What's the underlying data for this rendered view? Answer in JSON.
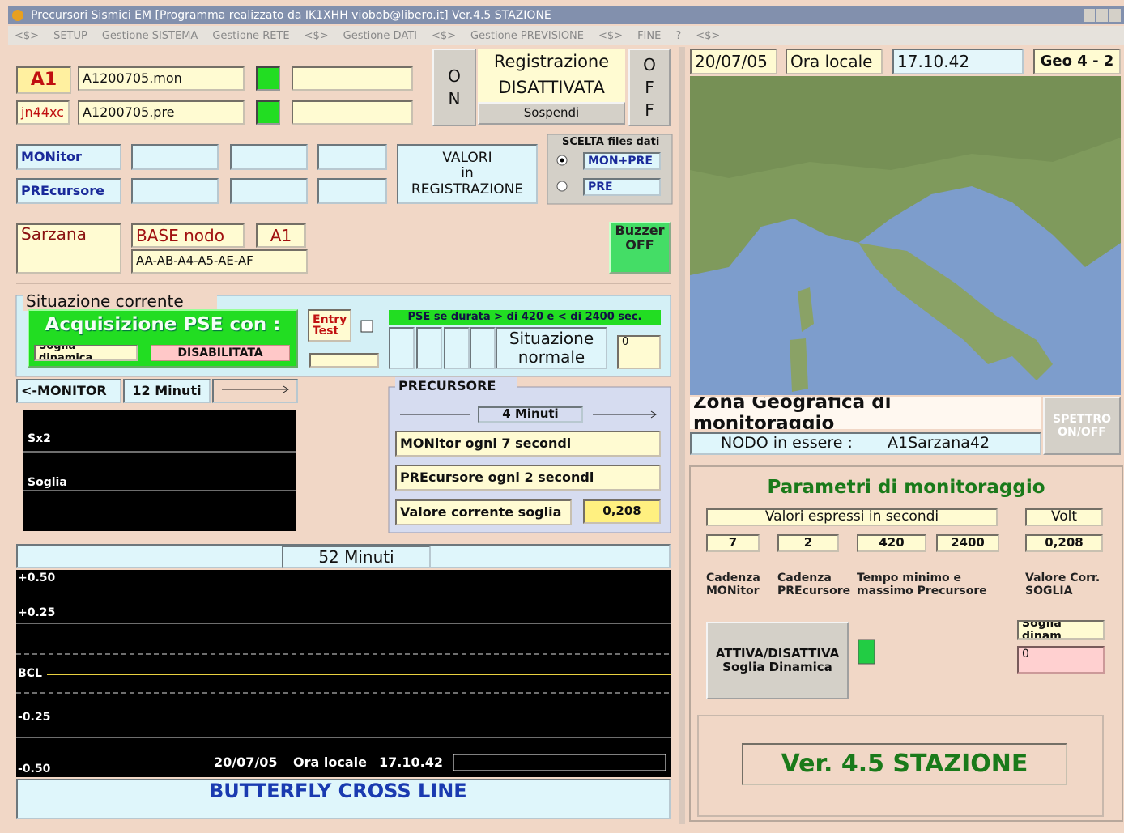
{
  "title_bar": {
    "title": "Precursori Sismici EM [Programma realizzato da IK1XHH viobob@libero.it] Ver.4.5 STAZIONE"
  },
  "menu": [
    "<$>",
    "SETUP",
    "Gestione SISTEMA",
    "Gestione RETE",
    "<$>",
    "Gestione DATI",
    "<$>",
    "Gestione PREVISIONE",
    "<$>",
    "FINE",
    "?",
    "<$>"
  ],
  "top": {
    "node_id": "A1",
    "mon_file": "A1200705.mon",
    "locator": "jn44xc",
    "pre_file": "A1200705.pre",
    "on_button": "ON",
    "registration_label": "Registrazione",
    "registration_state": "DISATTIVATA",
    "suspend_button": "Sospendi",
    "off_button": "OFF"
  },
  "files": {
    "monitor_label": "MONitor",
    "precursor_label": "PREcursore",
    "values_label": "VALORI\nin\nREGISTRAZIONE",
    "choice_title": "SCELTA files dati",
    "options": [
      "MON+PRE",
      "PRE"
    ]
  },
  "station": {
    "city": "Sarzana",
    "base_label": "BASE nodo",
    "base_value": "A1",
    "node_list": "AA-AB-A4-A5-AE-AF",
    "buzzer": "Buzzer\nOFF"
  },
  "situation": {
    "title": "Situazione corrente",
    "acquisition": "Acquisizione PSE con :",
    "threshold_label": "Soglia dinamica",
    "threshold_state": "DISABILITATA",
    "entry_test": "Entry\nTest",
    "pse_rule": "PSE se durata > di 420 e < di 2400 sec.",
    "status": "Situazione\nnormale",
    "counter": "0"
  },
  "monitor_panel": {
    "label": "<-MONITOR",
    "span": "12 Minuti",
    "traces": [
      "Sx2",
      "Soglia"
    ]
  },
  "precursor_panel": {
    "title": "PRECURSORE",
    "span": "4 Minuti",
    "monitor_rate": "MONitor ogni 7 secondi",
    "precursor_rate": "PREcursore ogni 2 secondi",
    "threshold_label": "Valore corrente soglia",
    "threshold_value": "0,208"
  },
  "main_plot": {
    "span": "52 Minuti",
    "levels": [
      "+0.50",
      "+0.25",
      "BCL",
      "-0.25",
      "-0.50"
    ],
    "date": "20/07/05",
    "time_label": "Ora locale",
    "time": "17.10.42",
    "footer": "BUTTERFLY CROSS LINE"
  },
  "right_header": {
    "date": "20/07/05",
    "time_label": "Ora locale",
    "time": "17.10.42",
    "geo": "Geo 4 - 2"
  },
  "map": {
    "title": "Zona Geografica di monitoraggio",
    "spectrum_button": "SPETTRO\nON/OFF",
    "node_label": "NODO in essere :",
    "node_value": "A1Sarzana42"
  },
  "parameters": {
    "title": "Parametri di monitoraggio",
    "seconds_header": "Valori espressi in secondi",
    "volt_header": "Volt",
    "values": [
      "7",
      "2",
      "420",
      "2400",
      "0,208"
    ],
    "captions": [
      "Cadenza\nMONitor",
      "Cadenza\nPREcursore",
      "Tempo minimo e\nmassimo Precursore",
      "Valore Corr.\nSOGLIA"
    ],
    "toggle_button": "ATTIVA/DISATTIVA\nSoglia Dinamica",
    "dynamic_label": "Soglia dinam",
    "dynamic_value": "0",
    "version": "Ver. 4.5 STAZIONE"
  }
}
